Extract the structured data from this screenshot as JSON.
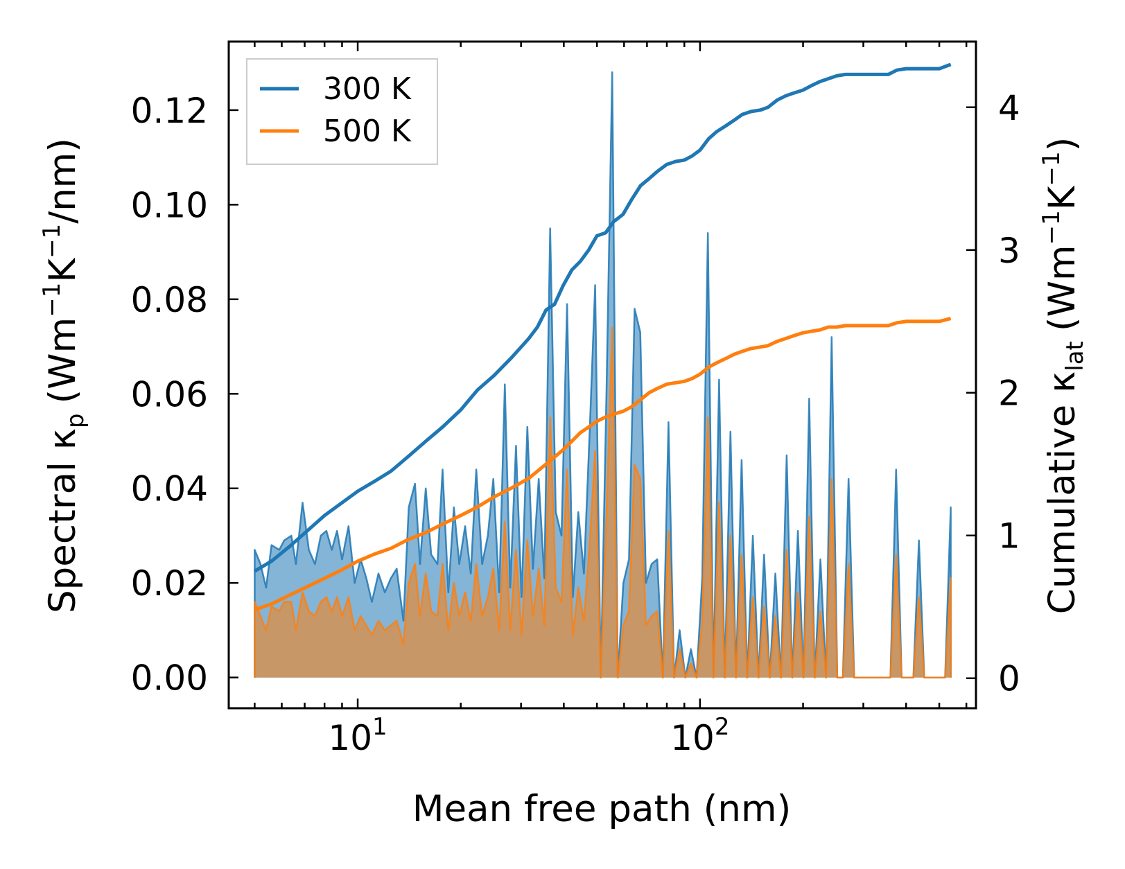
{
  "chart_data": {
    "type": "line",
    "xlabel": "Mean free path (nm)",
    "ylabel_left": {
      "main": "Spectral κ",
      "sub": "p",
      "unit": "(Wm",
      "exp1": "−1",
      "k": "K",
      "exp2": "−1",
      "tail": "/nm)"
    },
    "ylabel_right": {
      "main": "Cumulative κ",
      "sub": "lat",
      "unit": "(Wm",
      "exp1": "−1",
      "k": "K",
      "exp2": "−1",
      "tail": ")"
    },
    "x_scale": "log",
    "xlim": [
      4.2,
      640
    ],
    "ylim_left": [
      -0.0065,
      0.1345
    ],
    "ylim_right": [
      -0.21,
      4.46
    ],
    "x_ticks": [
      {
        "value": 10,
        "base": "10",
        "exp": "1"
      },
      {
        "value": 100,
        "base": "10",
        "exp": "2"
      }
    ],
    "y_ticks_left": [
      "0.00",
      "0.02",
      "0.04",
      "0.06",
      "0.08",
      "0.10",
      "0.12"
    ],
    "y_ticks_right": [
      "0",
      "1",
      "2",
      "3",
      "4"
    ],
    "legend": {
      "location": "top-left",
      "entries": [
        "300 K",
        "500 K"
      ]
    },
    "colors": {
      "300 K": "#1f77b4",
      "500 K": "#ff7f0e"
    },
    "spectral_300": [
      [
        5,
        0
      ],
      [
        5,
        0.027
      ],
      [
        5.2,
        0.024
      ],
      [
        5.4,
        0.019
      ],
      [
        5.6,
        0.028
      ],
      [
        5.9,
        0.027
      ],
      [
        6.1,
        0.029
      ],
      [
        6.4,
        0.03
      ],
      [
        6.6,
        0.024
      ],
      [
        6.9,
        0.037
      ],
      [
        7.2,
        0.027
      ],
      [
        7.5,
        0.024
      ],
      [
        7.8,
        0.03
      ],
      [
        8.1,
        0.031
      ],
      [
        8.4,
        0.027
      ],
      [
        8.7,
        0.031
      ],
      [
        9.0,
        0.025
      ],
      [
        9.4,
        0.032
      ],
      [
        9.8,
        0.02
      ],
      [
        10.2,
        0.025
      ],
      [
        10.6,
        0.021
      ],
      [
        11.0,
        0.016
      ],
      [
        11.5,
        0.022
      ],
      [
        12.0,
        0.018
      ],
      [
        12.5,
        0.021
      ],
      [
        13.0,
        0.023
      ],
      [
        13.6,
        0.012
      ],
      [
        14.1,
        0.036
      ],
      [
        14.7,
        0.041
      ],
      [
        15.2,
        0.024
      ],
      [
        15.8,
        0.04
      ],
      [
        16.4,
        0.026
      ],
      [
        17.1,
        0.024
      ],
      [
        17.7,
        0.044
      ],
      [
        18.4,
        0.018
      ],
      [
        19.1,
        0.036
      ],
      [
        19.8,
        0.024
      ],
      [
        20.6,
        0.032
      ],
      [
        21.4,
        0.022
      ],
      [
        22.2,
        0.044
      ],
      [
        23.1,
        0.024
      ],
      [
        24.0,
        0.03
      ],
      [
        24.9,
        0.042
      ],
      [
        25.9,
        0.018
      ],
      [
        26.9,
        0.062
      ],
      [
        27.9,
        0.019
      ],
      [
        29.0,
        0.049
      ],
      [
        30.1,
        0.017
      ],
      [
        31.3,
        0.053
      ],
      [
        32.5,
        0.023
      ],
      [
        33.8,
        0.042
      ],
      [
        35.1,
        0.021
      ],
      [
        36.5,
        0.095
      ],
      [
        37.9,
        0.035
      ],
      [
        39.4,
        0.03
      ],
      [
        40.9,
        0.079
      ],
      [
        42.5,
        0.017
      ],
      [
        44.1,
        0.035
      ],
      [
        45.8,
        0.022
      ],
      [
        47.6,
        0.052
      ],
      [
        49.4,
        0.083
      ],
      [
        51.3,
        0.0
      ],
      [
        53.3,
        0.06
      ],
      [
        55.4,
        0.128
      ],
      [
        57.5,
        0.0
      ],
      [
        59.7,
        0.02
      ],
      [
        62.0,
        0.025
      ],
      [
        64.4,
        0.078
      ],
      [
        66.9,
        0.073
      ],
      [
        69.5,
        0.02
      ],
      [
        72.2,
        0.024
      ],
      [
        75.0,
        0.025
      ],
      [
        77.9,
        0.0
      ],
      [
        80.9,
        0.054
      ],
      [
        84.0,
        0.0
      ],
      [
        87.2,
        0.01
      ],
      [
        90.6,
        0.0
      ],
      [
        94.1,
        0.006
      ],
      [
        97.7,
        0.0
      ],
      [
        101.5,
        0.021
      ],
      [
        105.4,
        0.094
      ],
      [
        109.5,
        0.0
      ],
      [
        113.7,
        0.063
      ],
      [
        118.1,
        0.0
      ],
      [
        122.7,
        0.052
      ],
      [
        127.4,
        0.0
      ],
      [
        132.3,
        0.046
      ],
      [
        137.4,
        0.0
      ],
      [
        142.7,
        0.03
      ],
      [
        148.2,
        0.0
      ],
      [
        153.9,
        0.026
      ],
      [
        159.9,
        0.0
      ],
      [
        166.0,
        0.022
      ],
      [
        172.4,
        0.0
      ],
      [
        179.1,
        0.047
      ],
      [
        186.0,
        0.0
      ],
      [
        193.2,
        0.031
      ],
      [
        200.6,
        0.0
      ],
      [
        208.4,
        0.059
      ],
      [
        216.4,
        0.0
      ],
      [
        224.8,
        0.025
      ],
      [
        233.4,
        0.0
      ],
      [
        242.4,
        0.072
      ],
      [
        251.8,
        0.0
      ],
      [
        261.5,
        0.0
      ],
      [
        271.6,
        0.042
      ],
      [
        282.1,
        0.0
      ],
      [
        293.0,
        0.0
      ],
      [
        360,
        0.0
      ],
      [
        374,
        0.044
      ],
      [
        388,
        0.0
      ],
      [
        420,
        0.0
      ],
      [
        436,
        0.029
      ],
      [
        452,
        0.0
      ],
      [
        520,
        0.0
      ],
      [
        540,
        0.036
      ],
      [
        540,
        0
      ]
    ],
    "spectral_500": [
      [
        5,
        0
      ],
      [
        5,
        0.016
      ],
      [
        5.2,
        0.013
      ],
      [
        5.4,
        0.01
      ],
      [
        5.6,
        0.015
      ],
      [
        5.9,
        0.014
      ],
      [
        6.1,
        0.016
      ],
      [
        6.4,
        0.016
      ],
      [
        6.6,
        0.01
      ],
      [
        6.9,
        0.018
      ],
      [
        7.2,
        0.014
      ],
      [
        7.5,
        0.013
      ],
      [
        7.8,
        0.016
      ],
      [
        8.1,
        0.017
      ],
      [
        8.4,
        0.014
      ],
      [
        8.7,
        0.017
      ],
      [
        9.0,
        0.013
      ],
      [
        9.4,
        0.017
      ],
      [
        9.8,
        0.01
      ],
      [
        10.2,
        0.013
      ],
      [
        10.6,
        0.011
      ],
      [
        11.0,
        0.009
      ],
      [
        11.5,
        0.012
      ],
      [
        12.0,
        0.01
      ],
      [
        12.5,
        0.011
      ],
      [
        13.0,
        0.012
      ],
      [
        13.6,
        0.007
      ],
      [
        14.1,
        0.02
      ],
      [
        14.7,
        0.024
      ],
      [
        15.2,
        0.013
      ],
      [
        15.8,
        0.022
      ],
      [
        16.4,
        0.014
      ],
      [
        17.1,
        0.013
      ],
      [
        17.7,
        0.024
      ],
      [
        18.4,
        0.01
      ],
      [
        19.1,
        0.02
      ],
      [
        19.8,
        0.013
      ],
      [
        20.6,
        0.018
      ],
      [
        21.4,
        0.012
      ],
      [
        22.2,
        0.024
      ],
      [
        23.1,
        0.013
      ],
      [
        24.0,
        0.017
      ],
      [
        24.9,
        0.023
      ],
      [
        25.9,
        0.01
      ],
      [
        26.9,
        0.033
      ],
      [
        27.9,
        0.01
      ],
      [
        29.0,
        0.027
      ],
      [
        30.1,
        0.009
      ],
      [
        31.3,
        0.029
      ],
      [
        32.5,
        0.013
      ],
      [
        33.8,
        0.023
      ],
      [
        35.1,
        0.011
      ],
      [
        36.5,
        0.055
      ],
      [
        37.9,
        0.019
      ],
      [
        39.4,
        0.016
      ],
      [
        40.9,
        0.044
      ],
      [
        42.5,
        0.009
      ],
      [
        44.1,
        0.019
      ],
      [
        45.8,
        0.012
      ],
      [
        47.6,
        0.028
      ],
      [
        49.4,
        0.048
      ],
      [
        51.3,
        0.0
      ],
      [
        53.3,
        0.034
      ],
      [
        55.4,
        0.074
      ],
      [
        57.5,
        0.0
      ],
      [
        59.7,
        0.011
      ],
      [
        62.0,
        0.014
      ],
      [
        64.4,
        0.045
      ],
      [
        66.9,
        0.042
      ],
      [
        69.5,
        0.011
      ],
      [
        72.2,
        0.013
      ],
      [
        75.0,
        0.014
      ],
      [
        77.9,
        0.0
      ],
      [
        80.9,
        0.031
      ],
      [
        84.0,
        0.0
      ],
      [
        87.2,
        0.006
      ],
      [
        90.6,
        0.0
      ],
      [
        94.1,
        0.003
      ],
      [
        97.7,
        0.0
      ],
      [
        101.5,
        0.012
      ],
      [
        105.4,
        0.055
      ],
      [
        109.5,
        0.0
      ],
      [
        113.7,
        0.037
      ],
      [
        118.1,
        0.0
      ],
      [
        122.7,
        0.03
      ],
      [
        127.4,
        0.0
      ],
      [
        132.3,
        0.026
      ],
      [
        137.4,
        0.0
      ],
      [
        142.7,
        0.017
      ],
      [
        148.2,
        0.0
      ],
      [
        153.9,
        0.015
      ],
      [
        159.9,
        0.0
      ],
      [
        166.0,
        0.013
      ],
      [
        172.4,
        0.0
      ],
      [
        179.1,
        0.027
      ],
      [
        186.0,
        0.0
      ],
      [
        193.2,
        0.018
      ],
      [
        200.6,
        0.0
      ],
      [
        208.4,
        0.034
      ],
      [
        216.4,
        0.0
      ],
      [
        224.8,
        0.014
      ],
      [
        233.4,
        0.0
      ],
      [
        242.4,
        0.042
      ],
      [
        251.8,
        0.0
      ],
      [
        261.5,
        0.0
      ],
      [
        271.6,
        0.024
      ],
      [
        282.1,
        0.0
      ],
      [
        293.0,
        0.0
      ],
      [
        360,
        0.0
      ],
      [
        374,
        0.026
      ],
      [
        388,
        0.0
      ],
      [
        420,
        0.0
      ],
      [
        436,
        0.017
      ],
      [
        452,
        0.0
      ],
      [
        520,
        0.0
      ],
      [
        540,
        0.021
      ],
      [
        540,
        0
      ]
    ],
    "cumulative_300": [
      [
        5,
        0.75
      ],
      [
        5.6,
        0.82
      ],
      [
        6.3,
        0.92
      ],
      [
        7.1,
        1.03
      ],
      [
        8.0,
        1.14
      ],
      [
        9.0,
        1.23
      ],
      [
        10,
        1.31
      ],
      [
        11.2,
        1.38
      ],
      [
        12.5,
        1.45
      ],
      [
        14,
        1.55
      ],
      [
        15.8,
        1.66
      ],
      [
        17.7,
        1.76
      ],
      [
        20,
        1.88
      ],
      [
        22.4,
        2.02
      ],
      [
        25,
        2.12
      ],
      [
        28,
        2.24
      ],
      [
        31.6,
        2.38
      ],
      [
        33.5,
        2.46
      ],
      [
        35.5,
        2.58
      ],
      [
        37.6,
        2.62
      ],
      [
        39.8,
        2.75
      ],
      [
        42.2,
        2.86
      ],
      [
        44.7,
        2.92
      ],
      [
        47.3,
        3.0
      ],
      [
        50,
        3.1
      ],
      [
        53,
        3.12
      ],
      [
        56,
        3.2
      ],
      [
        59.6,
        3.25
      ],
      [
        63,
        3.35
      ],
      [
        67,
        3.45
      ],
      [
        71,
        3.5
      ],
      [
        75,
        3.55
      ],
      [
        80,
        3.6
      ],
      [
        85,
        3.62
      ],
      [
        90,
        3.63
      ],
      [
        95,
        3.66
      ],
      [
        100,
        3.7
      ],
      [
        106,
        3.78
      ],
      [
        112,
        3.83
      ],
      [
        119,
        3.87
      ],
      [
        126,
        3.91
      ],
      [
        133,
        3.95
      ],
      [
        141,
        3.97
      ],
      [
        150,
        3.98
      ],
      [
        158,
        4.0
      ],
      [
        168,
        4.05
      ],
      [
        178,
        4.08
      ],
      [
        188,
        4.1
      ],
      [
        200,
        4.12
      ],
      [
        211,
        4.15
      ],
      [
        224,
        4.18
      ],
      [
        237,
        4.2
      ],
      [
        251,
        4.22
      ],
      [
        266,
        4.23
      ],
      [
        282,
        4.23
      ],
      [
        316,
        4.23
      ],
      [
        355,
        4.23
      ],
      [
        376,
        4.26
      ],
      [
        400,
        4.27
      ],
      [
        450,
        4.27
      ],
      [
        500,
        4.27
      ],
      [
        540,
        4.3
      ]
    ],
    "cumulative_500": [
      [
        5,
        0.48
      ],
      [
        5.6,
        0.52
      ],
      [
        6.3,
        0.58
      ],
      [
        7.1,
        0.64
      ],
      [
        8.0,
        0.7
      ],
      [
        9.0,
        0.76
      ],
      [
        10,
        0.82
      ],
      [
        11.2,
        0.87
      ],
      [
        12.5,
        0.91
      ],
      [
        14,
        0.97
      ],
      [
        15.8,
        1.02
      ],
      [
        17.7,
        1.08
      ],
      [
        20,
        1.14
      ],
      [
        22.4,
        1.2
      ],
      [
        25,
        1.27
      ],
      [
        28,
        1.33
      ],
      [
        31.6,
        1.4
      ],
      [
        33.5,
        1.45
      ],
      [
        35.5,
        1.5
      ],
      [
        37.6,
        1.55
      ],
      [
        39.8,
        1.6
      ],
      [
        42.2,
        1.66
      ],
      [
        44.7,
        1.72
      ],
      [
        47.3,
        1.76
      ],
      [
        50,
        1.8
      ],
      [
        53,
        1.83
      ],
      [
        56,
        1.85
      ],
      [
        59.6,
        1.87
      ],
      [
        63,
        1.9
      ],
      [
        67,
        1.95
      ],
      [
        71,
        2.0
      ],
      [
        75,
        2.03
      ],
      [
        80,
        2.06
      ],
      [
        85,
        2.07
      ],
      [
        90,
        2.08
      ],
      [
        95,
        2.1
      ],
      [
        100,
        2.13
      ],
      [
        106,
        2.18
      ],
      [
        112,
        2.21
      ],
      [
        119,
        2.24
      ],
      [
        126,
        2.27
      ],
      [
        133,
        2.29
      ],
      [
        141,
        2.31
      ],
      [
        150,
        2.32
      ],
      [
        158,
        2.33
      ],
      [
        168,
        2.36
      ],
      [
        178,
        2.38
      ],
      [
        188,
        2.4
      ],
      [
        200,
        2.42
      ],
      [
        211,
        2.43
      ],
      [
        224,
        2.44
      ],
      [
        237,
        2.46
      ],
      [
        251,
        2.46
      ],
      [
        266,
        2.47
      ],
      [
        282,
        2.47
      ],
      [
        316,
        2.47
      ],
      [
        355,
        2.47
      ],
      [
        376,
        2.49
      ],
      [
        400,
        2.5
      ],
      [
        450,
        2.5
      ],
      [
        500,
        2.5
      ],
      [
        540,
        2.52
      ]
    ]
  }
}
